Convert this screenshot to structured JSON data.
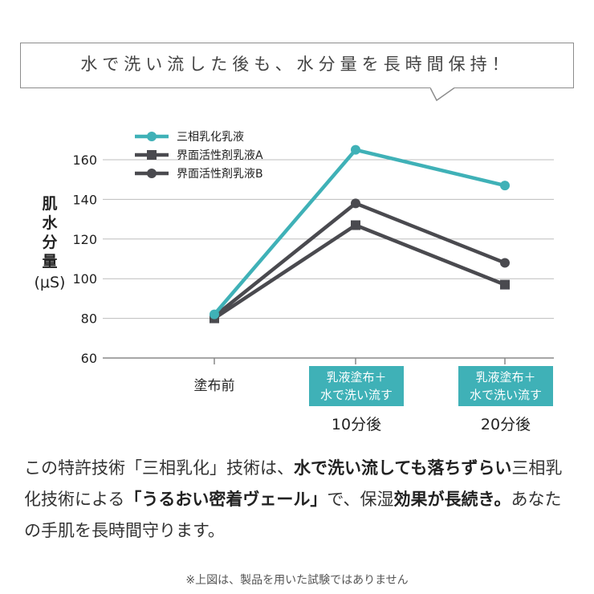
{
  "headline": "水で洗い流した後も、水分量を長時間保持！",
  "ylabel": {
    "chars": [
      "肌",
      "水",
      "分",
      "量"
    ],
    "unit": "(μS)"
  },
  "x_labels": [
    {
      "main": "塗布前",
      "box": null,
      "sub": ""
    },
    {
      "main": "",
      "box": [
        "乳液塗布＋",
        "水で洗い流す"
      ],
      "sub": "10分後"
    },
    {
      "main": "",
      "box": [
        "乳液塗布＋",
        "水で洗い流す"
      ],
      "sub": "20分後"
    }
  ],
  "description": {
    "p1": "この特許技術「三相乳化」技術は、",
    "b1": "水で洗い流しても落ちずらい",
    "p2": "三相乳化技術による",
    "b2": "「うるおい密着ヴェール」",
    "p3": "で、保湿",
    "b3": "効果が長続き。",
    "p4": "あなたの手肌を長時間守ります。"
  },
  "note": "※上図は、製品を用いた試験ではありません",
  "chart_data": {
    "type": "line",
    "categories": [
      "塗布前",
      "10分後",
      "20分後"
    ],
    "yticks": [
      60,
      80,
      100,
      120,
      140,
      160
    ],
    "ylim": [
      60,
      170
    ],
    "ylabel": "肌水分量 (μS)",
    "legend_position": "top-left",
    "series": [
      {
        "name": "三相乳化乳液",
        "values": [
          82,
          165,
          147
        ],
        "color": "#3fb1b7",
        "marker": "circle"
      },
      {
        "name": "界面活性剤乳液A",
        "values": [
          80,
          127,
          97
        ],
        "color": "#4a4a4f",
        "marker": "square"
      },
      {
        "name": "界面活性剤乳液B",
        "values": [
          81,
          138,
          108
        ],
        "color": "#4a4a4f",
        "marker": "circle"
      }
    ]
  }
}
